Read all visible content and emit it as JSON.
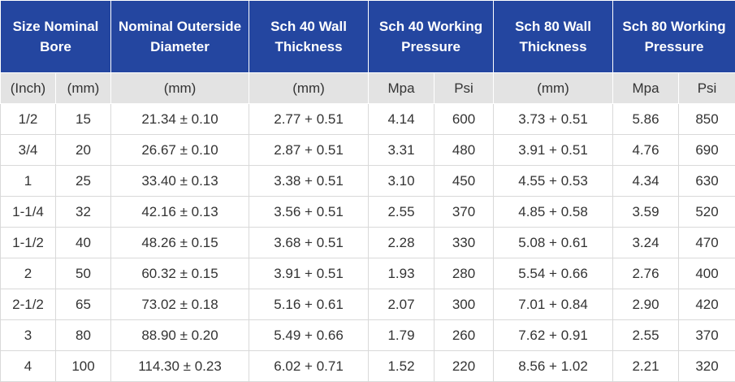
{
  "headers": {
    "size": "Size Nominal Bore",
    "od": "Nominal Outerside Diameter",
    "sch40_wall": "Sch 40 Wall Thickness",
    "sch40_pressure": "Sch 40 Working Pressure",
    "sch80_wall": "Sch 80 Wall Thickness",
    "sch80_pressure": "Sch 80 Working Pressure"
  },
  "units": [
    "(Inch)",
    "(mm)",
    "(mm)",
    "(mm)",
    "Mpa",
    "Psi",
    "(mm)",
    "Mpa",
    "Psi"
  ],
  "rows": [
    [
      "1/2",
      "15",
      "21.34 ± 0.10",
      "2.77 + 0.51",
      "4.14",
      "600",
      "3.73 + 0.51",
      "5.86",
      "850"
    ],
    [
      "3/4",
      "20",
      "26.67 ± 0.10",
      "2.87 + 0.51",
      "3.31",
      "480",
      "3.91 + 0.51",
      "4.76",
      "690"
    ],
    [
      "1",
      "25",
      "33.40 ± 0.13",
      "3.38 + 0.51",
      "3.10",
      "450",
      "4.55 + 0.53",
      "4.34",
      "630"
    ],
    [
      "1-1/4",
      "32",
      "42.16 ± 0.13",
      "3.56 + 0.51",
      "2.55",
      "370",
      "4.85 + 0.58",
      "3.59",
      "520"
    ],
    [
      "1-1/2",
      "40",
      "48.26 ± 0.15",
      "3.68 + 0.51",
      "2.28",
      "330",
      "5.08 + 0.61",
      "3.24",
      "470"
    ],
    [
      "2",
      "50",
      "60.32 ± 0.15",
      "3.91 + 0.51",
      "1.93",
      "280",
      "5.54 + 0.66",
      "2.76",
      "400"
    ],
    [
      "2-1/2",
      "65",
      "73.02 ± 0.18",
      "5.16 + 0.61",
      "2.07",
      "300",
      "7.01 + 0.84",
      "2.90",
      "420"
    ],
    [
      "3",
      "80",
      "88.90 ± 0.20",
      "5.49 + 0.66",
      "1.79",
      "260",
      "7.62 + 0.91",
      "2.55",
      "370"
    ],
    [
      "4",
      "100",
      "114.30 ± 0.23",
      "6.02 + 0.71",
      "1.52",
      "220",
      "8.56 + 1.02",
      "2.21",
      "320"
    ]
  ],
  "colors": {
    "header_bg": "#2446a0",
    "units_bg": "#e3e3e3"
  }
}
